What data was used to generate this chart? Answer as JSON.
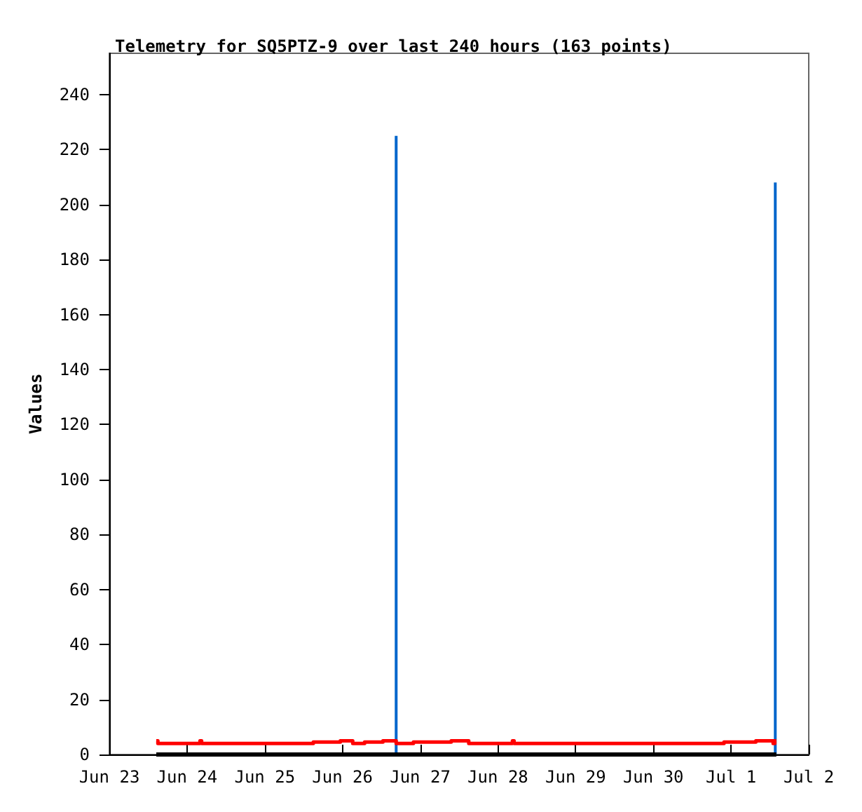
{
  "chart_data": {
    "type": "line",
    "title": "Telemetry for SQ5PTZ-9 over last 240 hours (163 points)",
    "ylabel": "Values",
    "xlim": [
      "--06-23",
      "--07-02"
    ],
    "xticks": [
      {
        "value": "--06-23",
        "label": "Jun 23"
      },
      {
        "value": "--06-24",
        "label": "Jun 24"
      },
      {
        "value": "--06-25",
        "label": "Jun 25"
      },
      {
        "value": "--06-26",
        "label": "Jun 26"
      },
      {
        "value": "--06-27",
        "label": "Jun 27"
      },
      {
        "value": "--06-28",
        "label": "Jun 28"
      },
      {
        "value": "--06-29",
        "label": "Jun 29"
      },
      {
        "value": "--06-30",
        "label": "Jun 30"
      },
      {
        "value": "--07-01",
        "label": "Jul 1"
      },
      {
        "value": "--07-02",
        "label": "Jul 2"
      }
    ],
    "ylim": [
      0,
      255
    ],
    "yticks": [
      0,
      20,
      40,
      60,
      80,
      100,
      120,
      140,
      160,
      180,
      200,
      220,
      240
    ],
    "grid": false,
    "marker": "none",
    "line_style": "solid",
    "series": [
      {
        "type": "step",
        "color": "#ff0000",
        "x": [
          "--06-23T14:30",
          "--06-23T15:00",
          "--06-24T04:00",
          "--06-24T04:30",
          "--06-25T15:00",
          "--06-25T23:20",
          "--06-26T03:10",
          "--06-26T06:50",
          "--06-26T12:30",
          "--06-26T16:35",
          "--06-26T21:55",
          "--06-27T09:35",
          "--06-27T15:00",
          "--06-28T04:30",
          "--06-28T05:00",
          "--06-30T21:50",
          "--07-01T07:40",
          "--07-01T13:00",
          "--07-01T13:30",
          "--07-01T14:00"
        ],
        "values": [
          5,
          4,
          5,
          4,
          4.5,
          5,
          4,
          4.5,
          5,
          4,
          4.5,
          5,
          4,
          5,
          4,
          4.5,
          5,
          4,
          5,
          5
        ]
      },
      {
        "color": "#000000",
        "x": [
          "--06-23T14:30",
          "--07-01T14:00"
        ],
        "values": [
          0,
          0
        ]
      },
      {
        "type": "bar",
        "color": "#0066cc",
        "x": [
          "--06-26T16:35",
          "--07-01T13:40"
        ],
        "values": [
          225,
          208
        ]
      }
    ]
  }
}
